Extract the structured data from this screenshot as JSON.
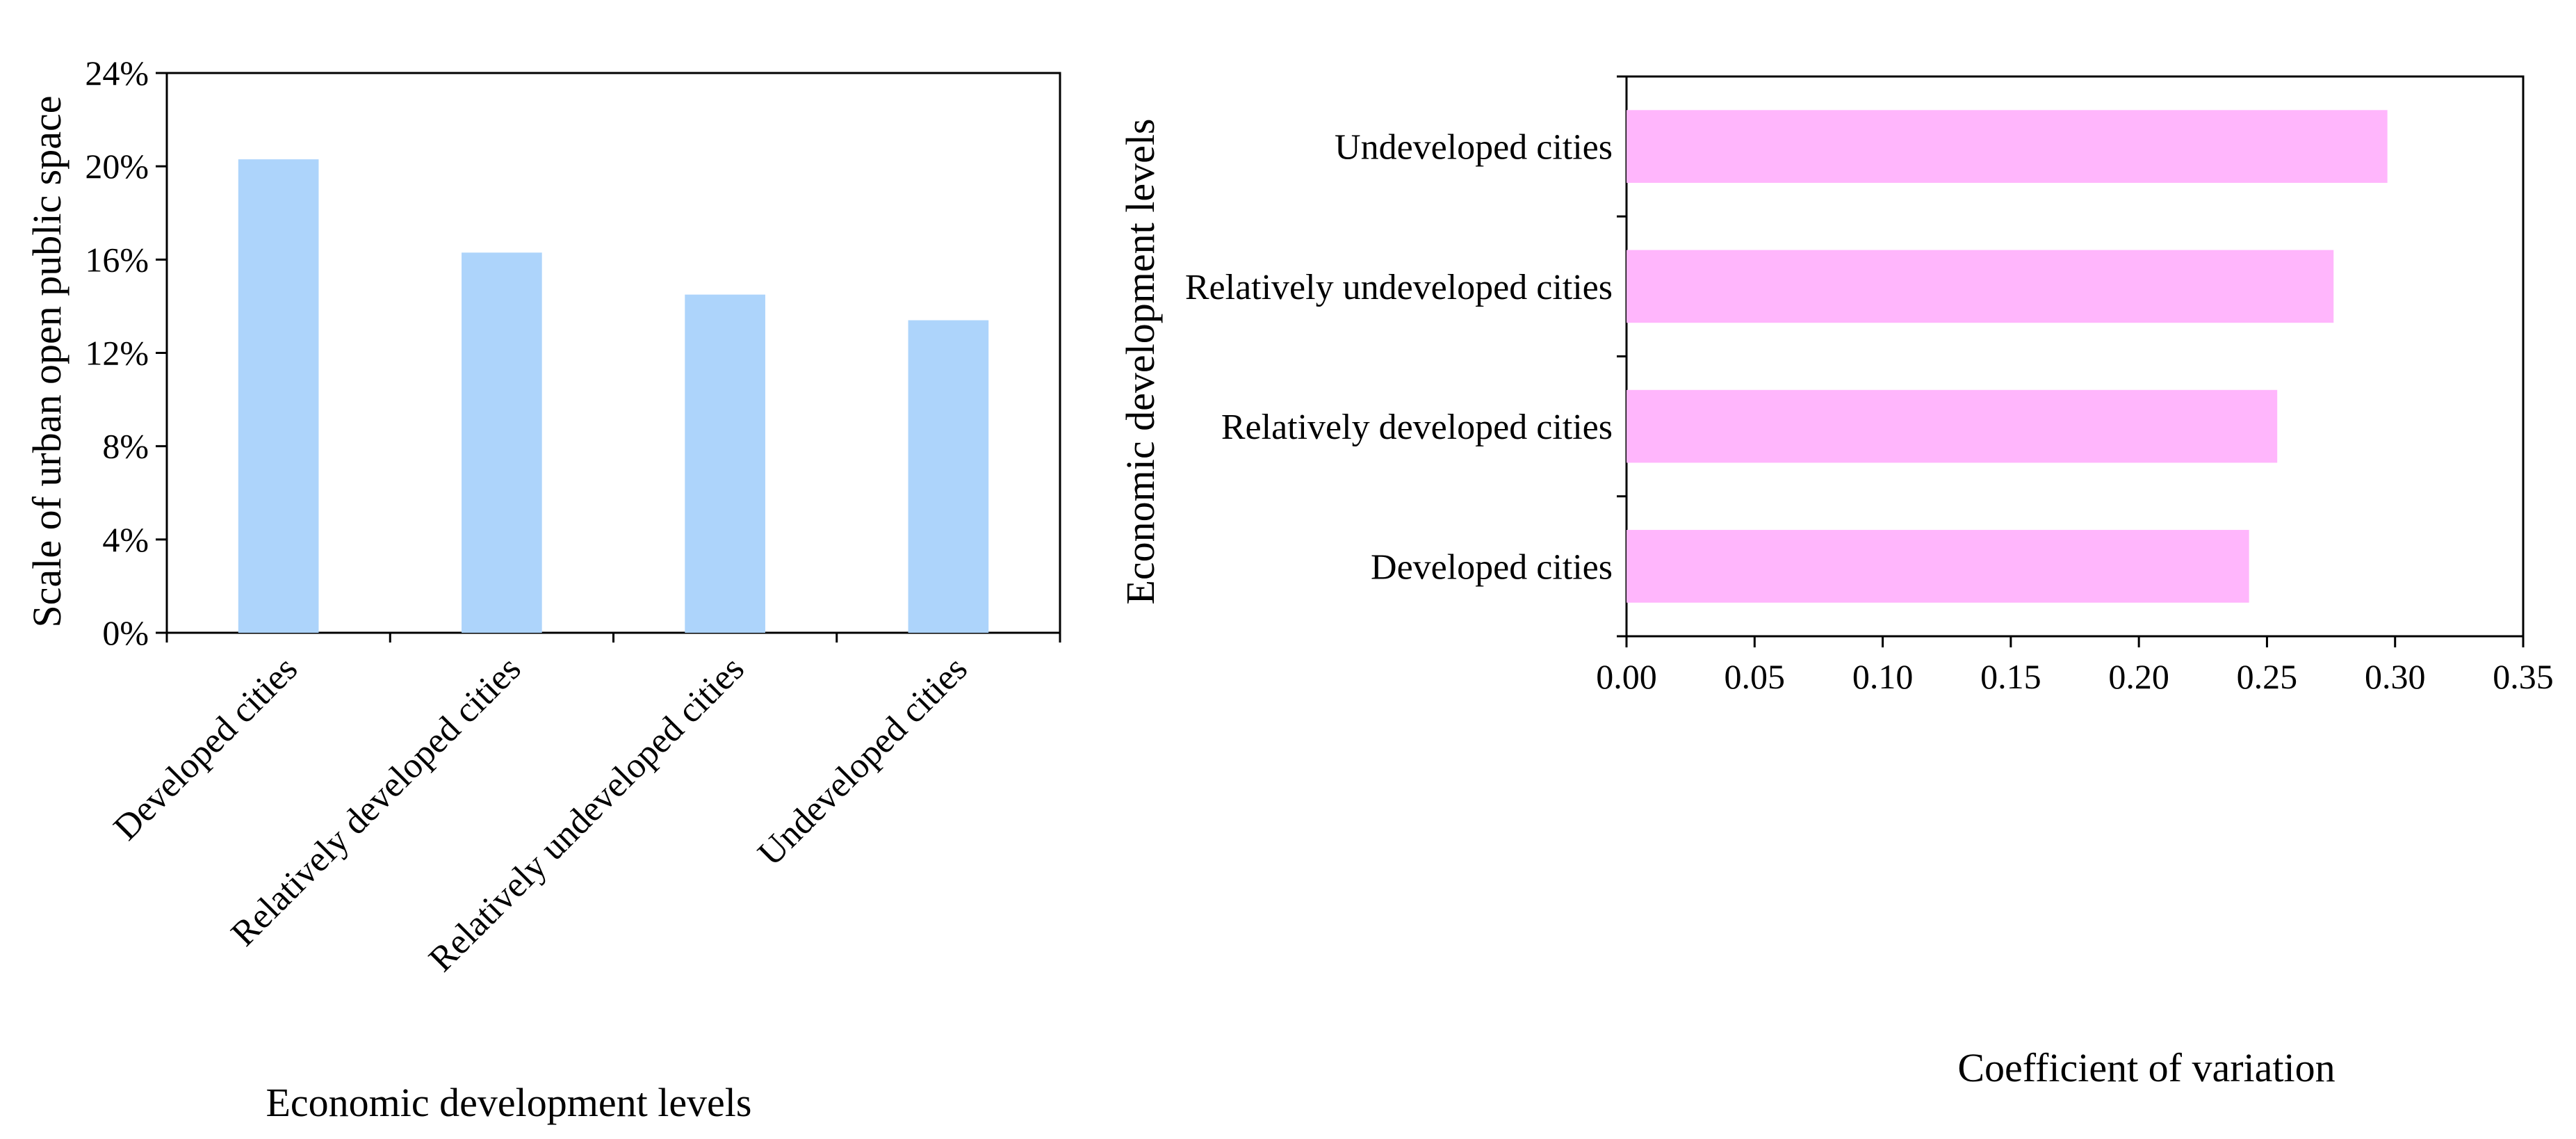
{
  "chart_data": [
    {
      "type": "bar",
      "orientation": "vertical",
      "categories": [
        "Developed cities",
        "Relatively developed cities",
        "Relatively undeveloped cities",
        "Undeveloped cities"
      ],
      "values": [
        20.3,
        16.3,
        14.5,
        13.4
      ],
      "value_unit": "%",
      "yticks": [
        "0%",
        "4%",
        "8%",
        "12%",
        "16%",
        "20%",
        "24%"
      ],
      "ylim": [
        0,
        24
      ],
      "xlabel": "Economic development levels",
      "ylabel": "Scale of urban open public space",
      "bar_color": "#add4fb",
      "grid": false,
      "legend": "none"
    },
    {
      "type": "bar",
      "orientation": "horizontal",
      "categories": [
        "Developed cities",
        "Relatively developed cities",
        "Relatively undeveloped cities",
        "Undeveloped cities"
      ],
      "values": [
        0.243,
        0.254,
        0.276,
        0.297
      ],
      "xticks": [
        "0.00",
        "0.05",
        "0.10",
        "0.15",
        "0.20",
        "0.25",
        "0.30",
        "0.35"
      ],
      "xlim": [
        0,
        0.35
      ],
      "xlabel": "Coefficient of variation",
      "ylabel": "Economic development levels",
      "bar_color": "#ffb6fc",
      "grid": false,
      "legend": "none"
    }
  ]
}
